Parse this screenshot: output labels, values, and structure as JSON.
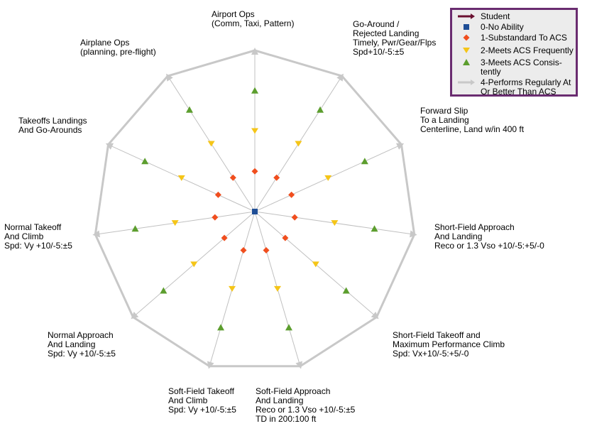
{
  "chart_data": {
    "type": "radar",
    "title": "",
    "axes": [
      [
        "Airport Ops",
        "(Comm, Taxi, Pattern)"
      ],
      [
        "Go-Around /",
        "Rejected Landing",
        "Timely, Pwr/Gear/Flps",
        "Spd+10/-5:±5"
      ],
      [
        "Forward Slip",
        "To a Landing",
        "Centerline, Land w/in 400 ft"
      ],
      [
        "Short-Field Approach",
        "And Landing",
        "Reco or 1.3 Vso +10/-5:+5/-0"
      ],
      [
        "Short-Field Takeoff and",
        "Maximum Performance Climb",
        "Spd: Vx+10/-5:+5/-0"
      ],
      [
        "Soft-Field Approach",
        "And Landing",
        "Reco or 1.3 Vso +10/-5:±5",
        "TD in 200:100 ft"
      ],
      [
        "Soft-Field Takeoff",
        "And Climb",
        "Spd: Vy +10/-5:±5"
      ],
      [
        "Normal Approach",
        "And Landing",
        "Spd: Vy +10/-5:±5"
      ],
      [
        "Normal Takeoff",
        "And Climb",
        "Spd: Vy +10/-5:±5"
      ],
      [
        "Takeoffs Landings",
        "And Go-Arounds"
      ],
      [
        "Airplane Ops",
        "(planning, pre-flight)"
      ]
    ],
    "r_range": [
      0,
      4
    ],
    "grid": true,
    "legend_position": "top-right",
    "series": [
      {
        "name": "Student",
        "color": "#6a1030",
        "marker": "arrow-line",
        "values": []
      },
      {
        "name": "0-No Ability",
        "color": "#1f4e96",
        "marker": "square",
        "values": [
          0,
          0,
          0,
          0,
          0,
          0,
          0,
          0,
          0,
          0,
          0
        ]
      },
      {
        "name": "1-Substandard To ACS",
        "color": "#f04e1e",
        "marker": "diamond",
        "values": [
          1,
          1,
          1,
          1,
          1,
          1,
          1,
          1,
          1,
          1,
          1
        ]
      },
      {
        "name": "2-Meets ACS Frequently",
        "color": "#f5c518",
        "marker": "triangle-down",
        "values": [
          2,
          2,
          2,
          2,
          2,
          2,
          2,
          2,
          2,
          2,
          2
        ]
      },
      {
        "name": "3-Meets ACS Consistently",
        "color": "#5c9e2e",
        "marker": "triangle-up",
        "values": [
          3,
          3,
          3,
          3,
          3,
          3,
          3,
          3,
          3,
          3,
          3
        ]
      },
      {
        "name": "4-Performs Regularly At Or Better Than ACS",
        "color": "#c8c8c8",
        "marker": "arrow-line",
        "values": [
          4,
          4,
          4,
          4,
          4,
          4,
          4,
          4,
          4,
          4,
          4
        ]
      }
    ]
  },
  "legend": {
    "items": [
      [
        "Student"
      ],
      [
        "0-No Ability"
      ],
      [
        "1-Substandard To ACS"
      ],
      [
        "2-Meets ACS Frequently"
      ],
      [
        "3-Meets ACS Consis-",
        "tently"
      ],
      [
        "4-Performs Regularly At",
        "Or Better Than ACS"
      ]
    ]
  }
}
